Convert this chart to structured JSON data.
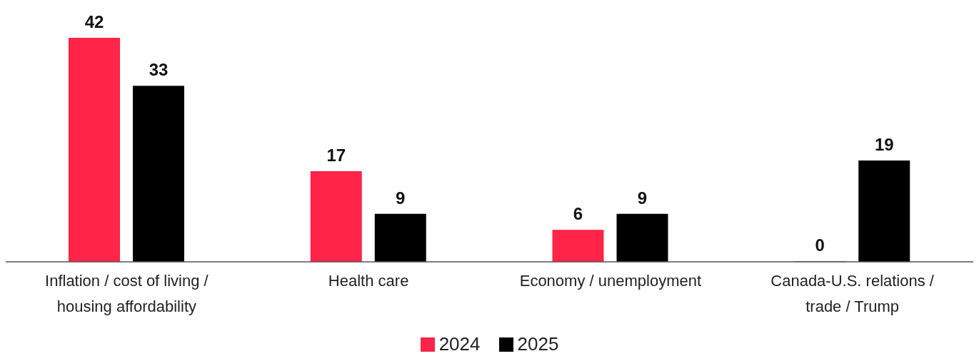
{
  "chart_data": {
    "type": "bar",
    "categories": [
      "Inflation / cost of living / housing affordability",
      "Health care",
      "Economy / unemployment",
      "Canada-U.S. relations / trade / Trump"
    ],
    "series": [
      {
        "name": "2024",
        "color": "#ff2448",
        "values": [
          42,
          17,
          6,
          0
        ]
      },
      {
        "name": "2025",
        "color": "#000000",
        "values": [
          33,
          9,
          9,
          19
        ]
      }
    ],
    "data_labels": true,
    "grid": false,
    "legend": "bottom"
  }
}
